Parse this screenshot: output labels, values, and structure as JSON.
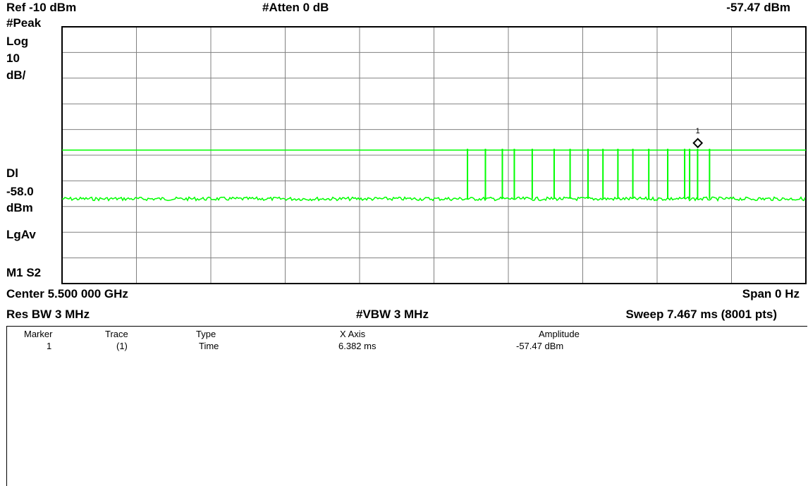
{
  "header": {
    "ref_level": "Ref -10 dBm",
    "attenuation": "#Atten 0 dB",
    "marker_readout": "-57.47 dBm"
  },
  "side_labels": {
    "detector": "#Peak",
    "scale_type": "Log",
    "scale_value": "10",
    "scale_unit": "dB/",
    "display_line_label": "Dl",
    "display_line_value": "-58.0",
    "display_line_unit": "dBm",
    "average_type": "LgAv",
    "mode": "M1  S2"
  },
  "footer": {
    "center": "Center 5.500 000 GHz",
    "span": "Span 0 Hz",
    "res_bw": "Res BW 3 MHz",
    "vbw": "#VBW 3 MHz",
    "sweep": "Sweep 7.467 ms (8001 pts)"
  },
  "marker_table": {
    "headers": [
      "Marker",
      "Trace",
      "Type",
      "X Axis",
      "Amplitude"
    ],
    "rows": [
      [
        "1",
        "(1)",
        "Time",
        "6.382 ms",
        "-57.47 dBm"
      ]
    ]
  },
  "marker": {
    "label": "1",
    "time_ms": 6.382,
    "amplitude_dbm": -57.47
  },
  "colors": {
    "trace": "#00ff00",
    "grid": "#808080",
    "frame": "#000000"
  },
  "chart_data": {
    "type": "line",
    "xlim_ms": [
      0,
      7.467
    ],
    "ylim_dbm": [
      -110,
      -10
    ],
    "divisions": {
      "x": 10,
      "y": 10
    },
    "grid": true,
    "display_line_dbm": -58.0,
    "noise_floor_dbm": -77,
    "pulse_top_dbm": -57.5,
    "pulse_times_ms": [
      4.07,
      4.25,
      4.42,
      4.54,
      4.72,
      4.94,
      5.1,
      5.28,
      5.43,
      5.58,
      5.73,
      5.89,
      6.08,
      6.25,
      6.3,
      6.38,
      6.5
    ]
  }
}
